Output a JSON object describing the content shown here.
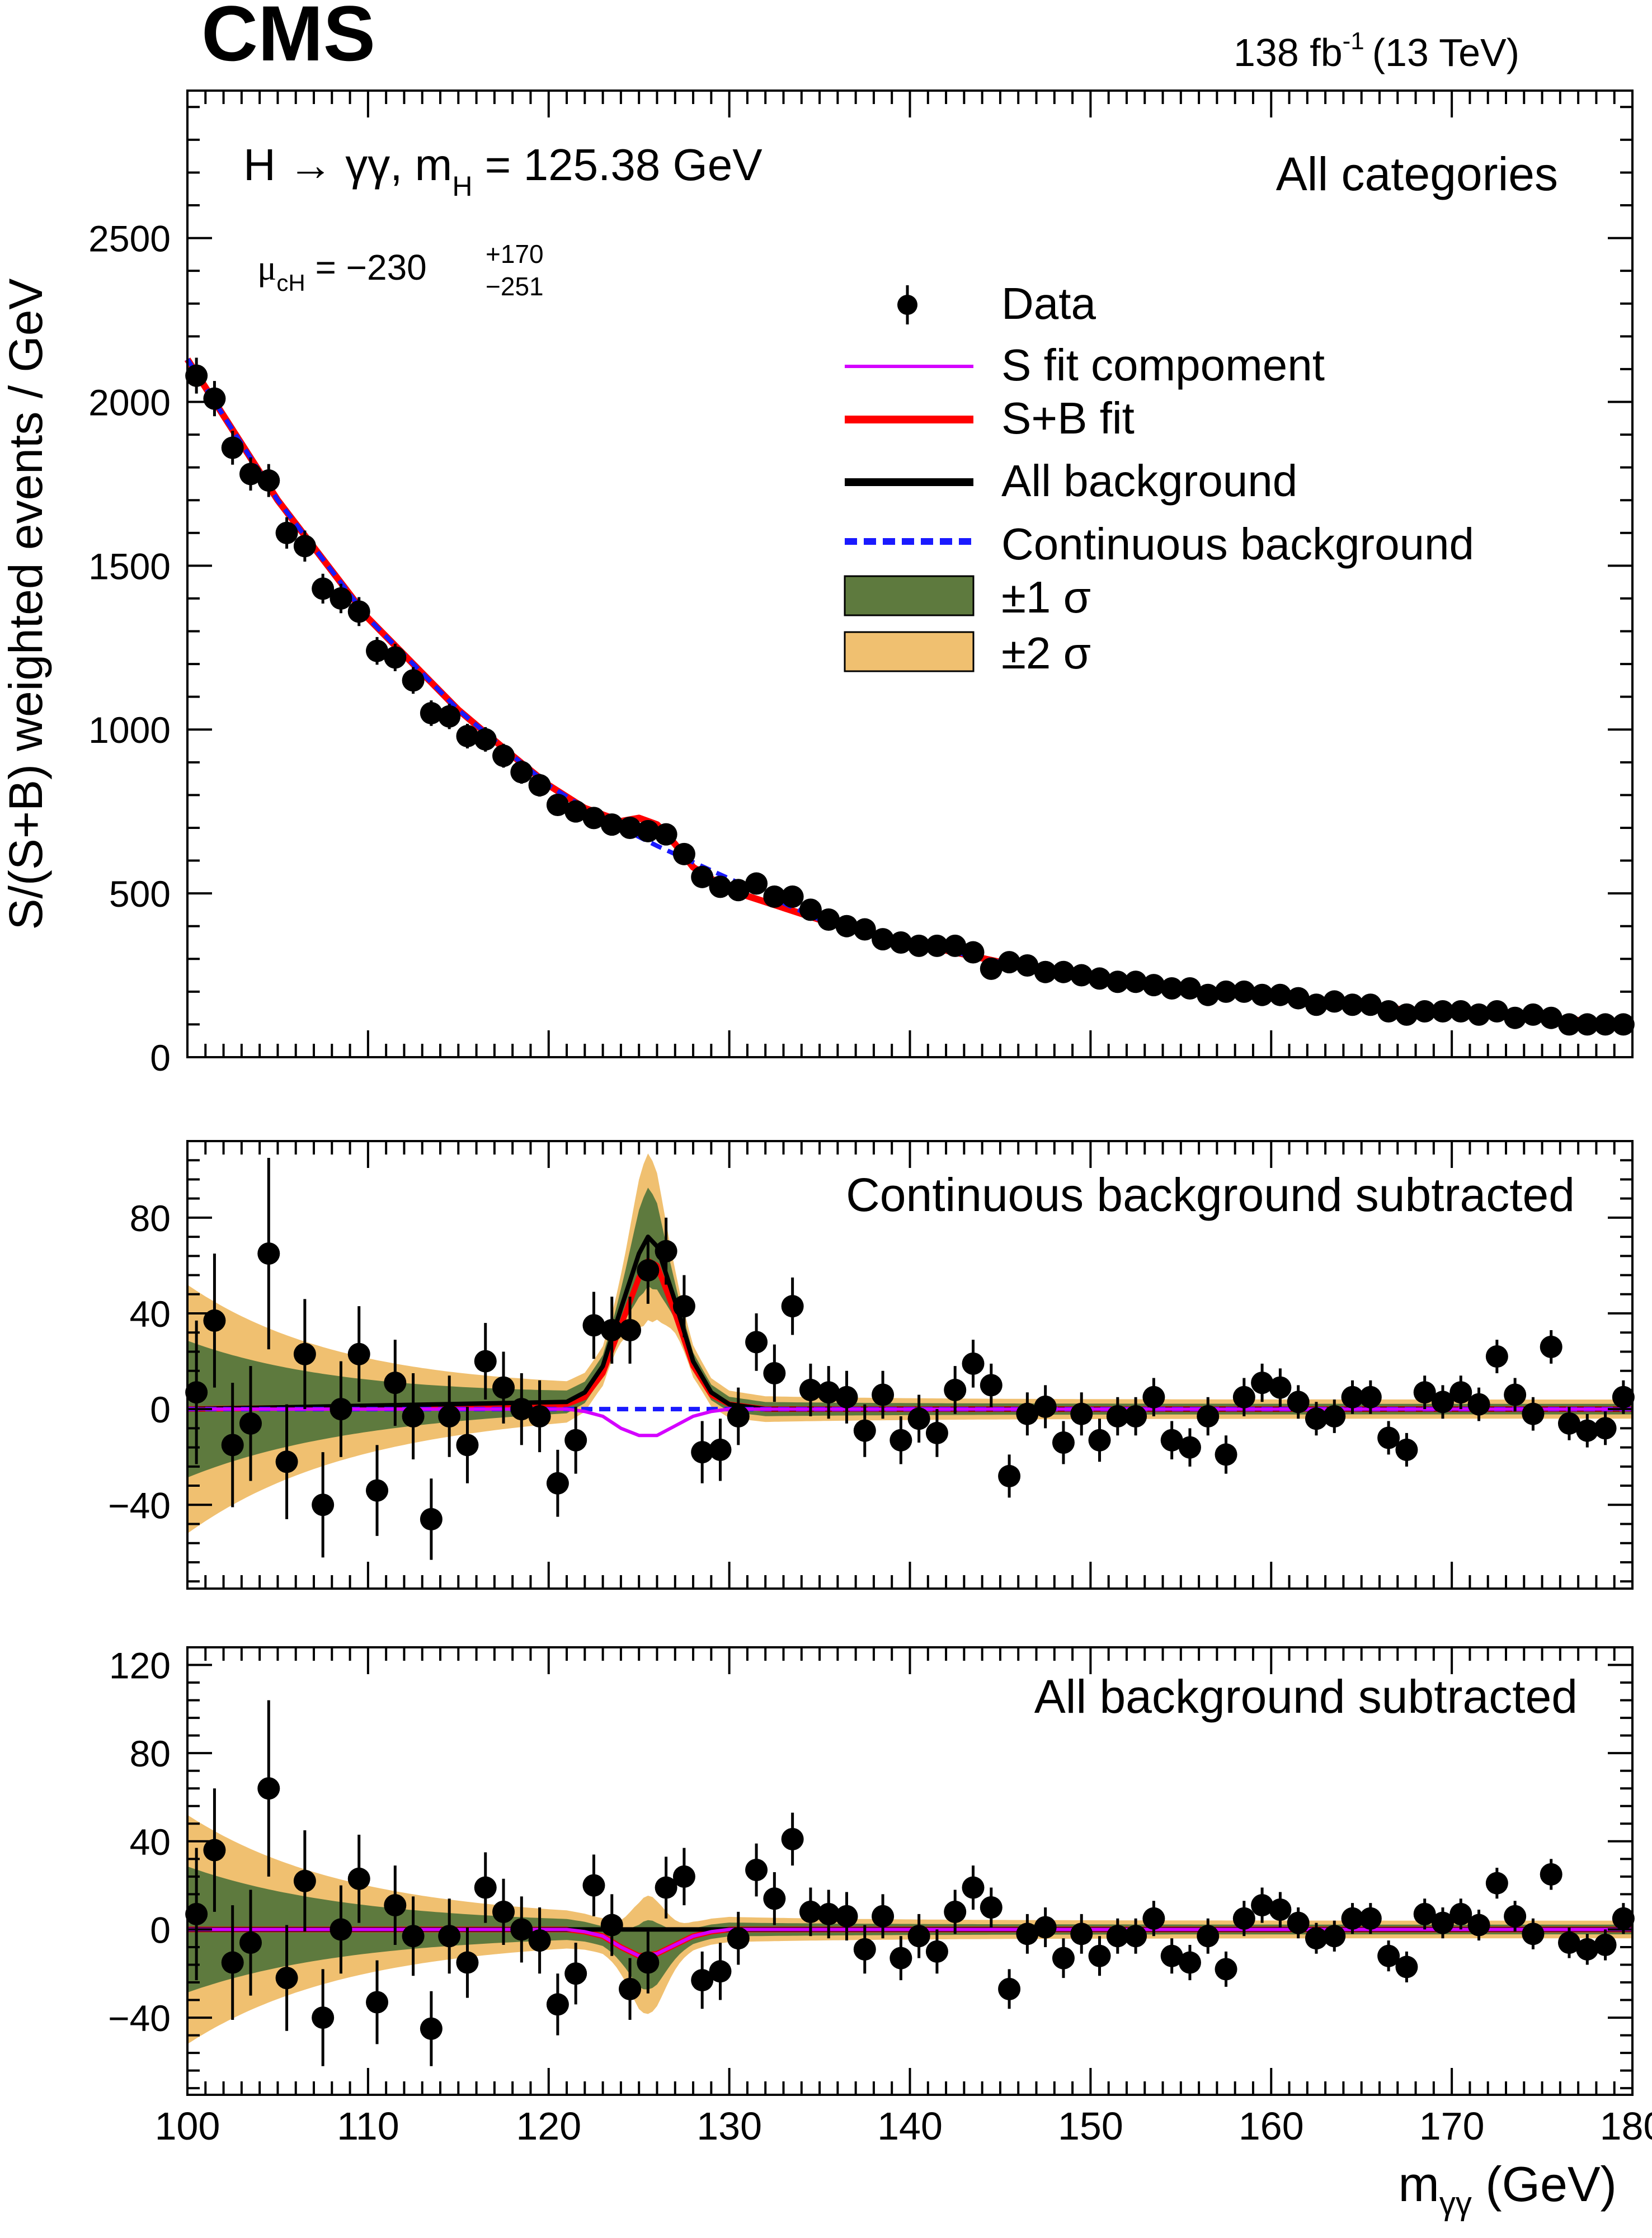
{
  "header": {
    "experiment": "CMS",
    "luminosity": "138 fb",
    "luminosity_exp": "-1",
    "energy": "(13 TeV)"
  },
  "annotations": {
    "process_pre": "H → γγ, m",
    "process_sub": "H",
    "process_post": " = 125.38 GeV",
    "category": "All categories",
    "mu_symbol": "μ",
    "mu_sub": "cH",
    "mu_value": " = −230",
    "mu_up": "+170",
    "mu_down": "−251"
  },
  "legend": {
    "data": "Data",
    "s_fit": "S fit compoment",
    "sb_fit": "S+B fit",
    "all_bkg": "All background",
    "cont_bkg": "Continuous background",
    "one_sigma": "±1 σ",
    "two_sigma": "±2 σ"
  },
  "colors": {
    "data": "#000000",
    "s_fit": "#d400ff",
    "sb_fit": "#ff0000",
    "all_bkg": "#000000",
    "cont_bkg": "#1a1aff",
    "one_sigma": "#5e7a3e",
    "two_sigma": "#f0c070"
  },
  "chart_data": [
    {
      "type": "scatter",
      "panel": "main",
      "xlabel": "",
      "ylabel": "S/(S+B) weighted events / GeV",
      "xlim": [
        100,
        180
      ],
      "ylim": [
        0,
        2950
      ],
      "yticks": [
        0,
        500,
        1000,
        1500,
        2000,
        2500
      ],
      "ytick_labels": [
        "0",
        "500",
        "1000",
        "1500",
        "2000",
        "2500"
      ],
      "grid": false,
      "x": [
        100.5,
        101.5,
        102.5,
        103.5,
        104.5,
        105.5,
        106.5,
        107.5,
        108.5,
        109.5,
        110.5,
        111.5,
        112.5,
        113.5,
        114.5,
        115.5,
        116.5,
        117.5,
        118.5,
        119.5,
        120.5,
        121.5,
        122.5,
        123.5,
        124.5,
        125.5,
        126.5,
        127.5,
        128.5,
        129.5,
        130.5,
        131.5,
        132.5,
        133.5,
        134.5,
        135.5,
        136.5,
        137.5,
        138.5,
        139.5,
        140.5,
        141.5,
        142.5,
        143.5,
        144.5,
        145.5,
        146.5,
        147.5,
        148.5,
        149.5,
        150.5,
        151.5,
        152.5,
        153.5,
        154.5,
        155.5,
        156.5,
        157.5,
        158.5,
        159.5,
        160.5,
        161.5,
        162.5,
        163.5,
        164.5,
        165.5,
        166.5,
        167.5,
        168.5,
        169.5,
        170.5,
        171.5,
        172.5,
        173.5,
        174.5,
        175.5,
        176.5,
        177.5,
        178.5,
        179.5
      ],
      "y": [
        2080,
        2010,
        1860,
        1780,
        1760,
        1600,
        1560,
        1430,
        1400,
        1360,
        1240,
        1220,
        1150,
        1050,
        1040,
        980,
        970,
        920,
        870,
        830,
        770,
        750,
        730,
        710,
        700,
        690,
        680,
        620,
        550,
        520,
        510,
        530,
        490,
        490,
        450,
        420,
        400,
        390,
        360,
        350,
        340,
        340,
        340,
        320,
        270,
        290,
        280,
        260,
        260,
        250,
        240,
        230,
        230,
        220,
        210,
        210,
        190,
        200,
        200,
        190,
        190,
        180,
        160,
        170,
        160,
        160,
        140,
        130,
        140,
        140,
        140,
        130,
        140,
        120,
        130,
        120,
        100,
        100,
        100,
        100
      ],
      "sb_fit": [
        [
          100,
          2130
        ],
        [
          105,
          1700
        ],
        [
          110,
          1340
        ],
        [
          115,
          1060
        ],
        [
          118,
          920
        ],
        [
          120,
          830
        ],
        [
          122,
          760
        ],
        [
          124,
          720
        ],
        [
          125,
          730
        ],
        [
          126,
          710
        ],
        [
          127,
          650
        ],
        [
          128,
          580
        ],
        [
          130,
          510
        ],
        [
          135,
          420
        ],
        [
          140,
          350
        ],
        [
          145,
          290
        ],
        [
          150,
          245
        ],
        [
          155,
          210
        ],
        [
          160,
          180
        ],
        [
          165,
          155
        ],
        [
          170,
          135
        ],
        [
          175,
          118
        ],
        [
          180,
          105
        ]
      ],
      "cont_bkg": [
        [
          100,
          2130
        ],
        [
          105,
          1700
        ],
        [
          110,
          1340
        ],
        [
          115,
          1060
        ],
        [
          118,
          920
        ],
        [
          120,
          830
        ],
        [
          122,
          760
        ],
        [
          124,
          700
        ],
        [
          126,
          645
        ],
        [
          128,
          595
        ],
        [
          130,
          545
        ],
        [
          135,
          420
        ],
        [
          140,
          350
        ],
        [
          145,
          290
        ],
        [
          150,
          245
        ],
        [
          155,
          210
        ],
        [
          160,
          180
        ],
        [
          165,
          155
        ],
        [
          170,
          135
        ],
        [
          175,
          118
        ],
        [
          180,
          105
        ]
      ]
    },
    {
      "type": "scatter",
      "panel": "continuous_background_subtracted",
      "title": "Continuous background subtracted",
      "xlim": [
        100,
        180
      ],
      "ylim": [
        -75,
        112
      ],
      "yticks": [
        -40,
        0,
        40,
        80
      ],
      "ytick_labels": [
        "−40",
        "0",
        "40",
        "80"
      ],
      "x": [
        100.5,
        101.5,
        102.5,
        103.5,
        104.5,
        105.5,
        106.5,
        107.5,
        108.5,
        109.5,
        110.5,
        111.5,
        112.5,
        113.5,
        114.5,
        115.5,
        116.5,
        117.5,
        118.5,
        119.5,
        120.5,
        121.5,
        122.5,
        123.5,
        124.5,
        125.5,
        126.5,
        127.5,
        128.5,
        129.5,
        130.5,
        131.5,
        132.5,
        133.5,
        134.5,
        135.5,
        136.5,
        137.5,
        138.5,
        139.5,
        140.5,
        141.5,
        142.5,
        143.5,
        144.5,
        145.5,
        146.5,
        147.5,
        148.5,
        149.5,
        150.5,
        151.5,
        152.5,
        153.5,
        154.5,
        155.5,
        156.5,
        157.5,
        158.5,
        159.5,
        160.5,
        161.5,
        162.5,
        163.5,
        164.5,
        165.5,
        166.5,
        167.5,
        168.5,
        169.5,
        170.5,
        171.5,
        172.5,
        173.5,
        174.5,
        175.5,
        176.5,
        177.5,
        178.5,
        179.5
      ],
      "y": [
        7,
        37,
        -15,
        -6,
        65,
        -22,
        23,
        -40,
        0,
        23,
        -34,
        11,
        -3,
        -46,
        -3,
        -15,
        20,
        9,
        0,
        -3,
        -31,
        -13,
        35,
        33,
        33,
        58,
        66,
        43,
        -18,
        -17,
        -3,
        28,
        15,
        43,
        8,
        7,
        5,
        -9,
        6,
        -13,
        -4,
        -10,
        8,
        19,
        10,
        -28,
        -2,
        1,
        -14,
        -2,
        -13,
        -3,
        -3,
        5,
        -13,
        -16,
        -3,
        -19,
        5,
        11,
        9,
        3,
        -4,
        -3,
        5,
        5,
        -12,
        -17,
        7,
        3,
        7,
        2,
        22,
        6,
        -2,
        26,
        -6,
        -9,
        -8,
        5
      ],
      "err": [
        30,
        28,
        26,
        24,
        40,
        24,
        23,
        22,
        20,
        20,
        19,
        18,
        18,
        17,
        17,
        16,
        16,
        15,
        15,
        15,
        14,
        14,
        14,
        14,
        14,
        14,
        14,
        13,
        13,
        13,
        12,
        12,
        12,
        12,
        11,
        11,
        11,
        11,
        10,
        10,
        10,
        10,
        10,
        10,
        9,
        9,
        9,
        9,
        9,
        9,
        9,
        8,
        8,
        8,
        8,
        8,
        8,
        8,
        8,
        8,
        8,
        7,
        7,
        7,
        7,
        7,
        7,
        7,
        7,
        7,
        7,
        7,
        7,
        7,
        7,
        7,
        7,
        7,
        7,
        7
      ],
      "sb_fit": [
        [
          100,
          0
        ],
        [
          121,
          2
        ],
        [
          122,
          5
        ],
        [
          123,
          15
        ],
        [
          124,
          35
        ],
        [
          125,
          55
        ],
        [
          125.5,
          62
        ],
        [
          126,
          60
        ],
        [
          127,
          40
        ],
        [
          128,
          18
        ],
        [
          129,
          6
        ],
        [
          130,
          2
        ],
        [
          132,
          0
        ],
        [
          180,
          0
        ]
      ],
      "all_bkg": [
        [
          100,
          0
        ],
        [
          121,
          3
        ],
        [
          122,
          7
        ],
        [
          123,
          18
        ],
        [
          124,
          42
        ],
        [
          125,
          65
        ],
        [
          125.5,
          72
        ],
        [
          126,
          68
        ],
        [
          127,
          45
        ],
        [
          128,
          20
        ],
        [
          129,
          7
        ],
        [
          130,
          2
        ],
        [
          132,
          0
        ],
        [
          180,
          0
        ]
      ],
      "s_fit": [
        [
          100,
          0
        ],
        [
          121,
          0
        ],
        [
          122,
          -1
        ],
        [
          123,
          -3
        ],
        [
          124,
          -8
        ],
        [
          125,
          -11
        ],
        [
          126,
          -11
        ],
        [
          127,
          -7
        ],
        [
          128,
          -3
        ],
        [
          129,
          -1
        ],
        [
          130,
          0
        ],
        [
          180,
          0
        ]
      ],
      "cont_bkg": [
        [
          100,
          0
        ],
        [
          180,
          0
        ]
      ]
    },
    {
      "type": "scatter",
      "panel": "all_background_subtracted",
      "title": "All background subtracted",
      "xlabel": "m",
      "xlabel_sub": "γγ",
      "xlabel_unit": " (GeV)",
      "xlim": [
        100,
        180
      ],
      "ylim": [
        -75,
        128
      ],
      "xticks": [
        100,
        110,
        120,
        130,
        140,
        150,
        160,
        170,
        180
      ],
      "xtick_labels": [
        "100",
        "110",
        "120",
        "130",
        "140",
        "150",
        "160",
        "170",
        "180"
      ],
      "yticks": [
        -40,
        0,
        40,
        80,
        120
      ],
      "ytick_labels": [
        "−40",
        "0",
        "40",
        "80",
        "120"
      ],
      "x": [
        100.5,
        101.5,
        102.5,
        103.5,
        104.5,
        105.5,
        106.5,
        107.5,
        108.5,
        109.5,
        110.5,
        111.5,
        112.5,
        113.5,
        114.5,
        115.5,
        116.5,
        117.5,
        118.5,
        119.5,
        120.5,
        121.5,
        122.5,
        123.5,
        124.5,
        125.5,
        126.5,
        127.5,
        128.5,
        129.5,
        130.5,
        131.5,
        132.5,
        133.5,
        134.5,
        135.5,
        136.5,
        137.5,
        138.5,
        139.5,
        140.5,
        141.5,
        142.5,
        143.5,
        144.5,
        145.5,
        146.5,
        147.5,
        148.5,
        149.5,
        150.5,
        151.5,
        152.5,
        153.5,
        154.5,
        155.5,
        156.5,
        157.5,
        158.5,
        159.5,
        160.5,
        161.5,
        162.5,
        163.5,
        164.5,
        165.5,
        166.5,
        167.5,
        168.5,
        169.5,
        170.5,
        171.5,
        172.5,
        173.5,
        174.5,
        175.5,
        176.5,
        177.5,
        178.5,
        179.5
      ],
      "y": [
        7,
        36,
        -15,
        -6,
        64,
        -22,
        22,
        -40,
        0,
        23,
        -33,
        11,
        -3,
        -45,
        -3,
        -15,
        19,
        8,
        0,
        -5,
        -34,
        -20,
        20,
        2,
        -27,
        -15,
        19,
        24,
        -23,
        -19,
        -4,
        27,
        14,
        41,
        8,
        7,
        6,
        -9,
        6,
        -13,
        -3,
        -10,
        8,
        19,
        10,
        -27,
        -2,
        1,
        -13,
        -2,
        -12,
        -3,
        -3,
        5,
        -12,
        -15,
        -3,
        -18,
        5,
        11,
        9,
        3,
        -4,
        -3,
        5,
        5,
        -12,
        -17,
        7,
        3,
        7,
        2,
        21,
        6,
        -2,
        25,
        -6,
        -9,
        -7,
        5
      ],
      "err": [
        30,
        28,
        26,
        24,
        40,
        24,
        23,
        22,
        20,
        20,
        19,
        18,
        18,
        17,
        17,
        16,
        16,
        15,
        15,
        15,
        14,
        14,
        14,
        14,
        14,
        14,
        14,
        13,
        13,
        13,
        12,
        12,
        12,
        12,
        11,
        11,
        11,
        11,
        10,
        10,
        10,
        10,
        10,
        10,
        9,
        9,
        9,
        9,
        9,
        9,
        9,
        8,
        8,
        8,
        8,
        8,
        8,
        8,
        8,
        8,
        8,
        7,
        7,
        7,
        7,
        7,
        7,
        7,
        7,
        7,
        7,
        7,
        7,
        7,
        7,
        7,
        7,
        7,
        7,
        7
      ],
      "s_fit": [
        [
          100,
          0
        ],
        [
          121,
          0
        ],
        [
          122,
          -1
        ],
        [
          123,
          -3
        ],
        [
          124,
          -8
        ],
        [
          125,
          -12
        ],
        [
          126,
          -11
        ],
        [
          127,
          -7
        ],
        [
          128,
          -3
        ],
        [
          129,
          -1
        ],
        [
          130,
          0
        ],
        [
          180,
          0
        ]
      ],
      "sb_fit": [
        [
          100,
          0
        ],
        [
          121,
          0
        ],
        [
          122,
          -1
        ],
        [
          123,
          -3
        ],
        [
          124,
          -8
        ],
        [
          125,
          -12
        ],
        [
          126,
          -11
        ],
        [
          127,
          -7
        ],
        [
          128,
          -3
        ],
        [
          129,
          -1
        ],
        [
          130,
          0
        ],
        [
          180,
          0
        ]
      ],
      "all_bkg": [
        [
          100,
          0
        ],
        [
          180,
          0
        ]
      ]
    }
  ]
}
